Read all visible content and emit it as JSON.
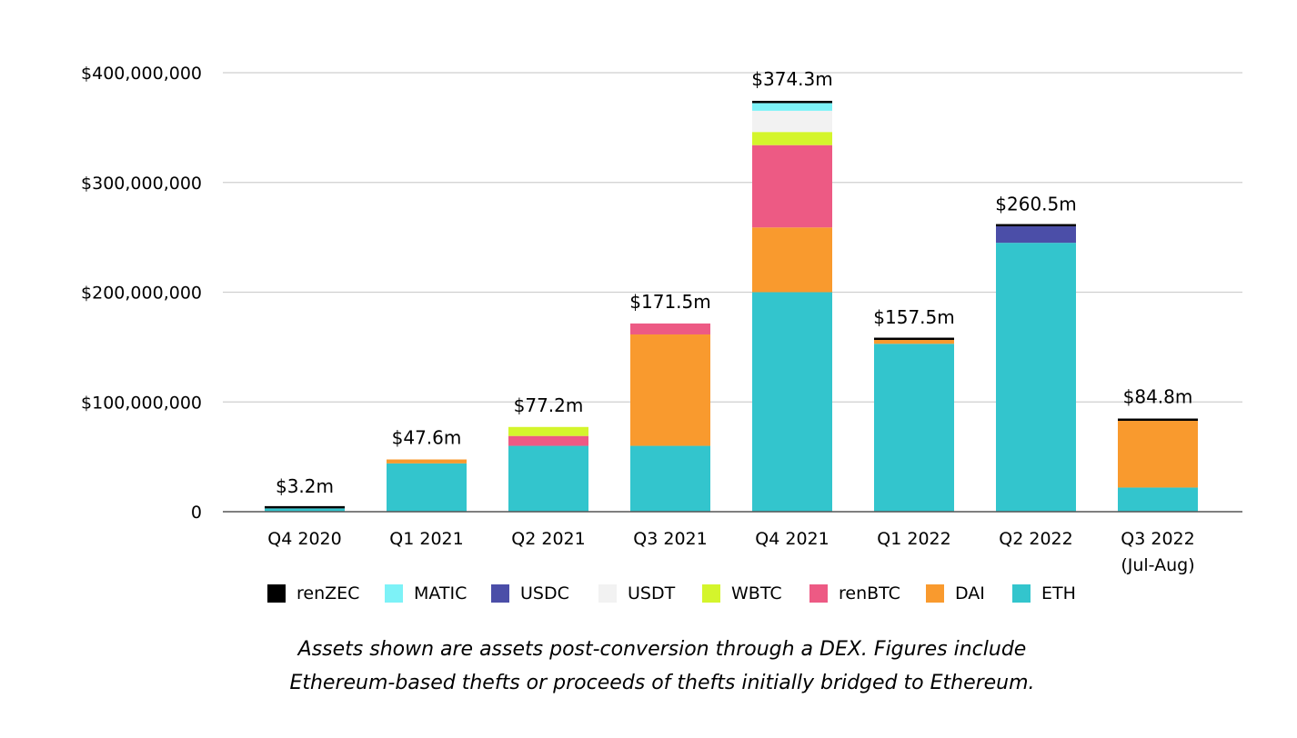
{
  "chart_data": {
    "type": "bar",
    "stacked": true,
    "categories": [
      "Q4 2020",
      "Q1 2021",
      "Q2 2021",
      "Q3 2021",
      "Q4 2021",
      "Q1 2022",
      "Q2 2022",
      "Q3 2022 (Jul-Aug)"
    ],
    "category_lines": [
      [
        "Q4 2020"
      ],
      [
        "Q1 2021"
      ],
      [
        "Q2 2021"
      ],
      [
        "Q3 2021"
      ],
      [
        "Q4 2021"
      ],
      [
        "Q1 2022"
      ],
      [
        "Q2 2022"
      ],
      [
        "Q3 2022",
        "(Jul-Aug)"
      ]
    ],
    "totals": [
      "$3.2m",
      "$47.6m",
      "$77.2m",
      "$171.5m",
      "$374.3m",
      "$157.5m",
      "$260.5m",
      "$84.8m"
    ],
    "yticks": [
      0,
      100000000,
      200000000,
      300000000,
      400000000
    ],
    "ytick_labels": [
      "0",
      "$100,000,000",
      "$200,000,000",
      "$300,000,000",
      "$400,000,000"
    ],
    "ylim": [
      0,
      400000000
    ],
    "grid": true,
    "legend_position": "bottom",
    "series": [
      {
        "name": "ETH",
        "color": "#33c5cd",
        "values": [
          3000000,
          44000000,
          60000000,
          60000000,
          200000000,
          153000000,
          245000000,
          22000000
        ]
      },
      {
        "name": "DAI",
        "color": "#f99a2e",
        "values": [
          0,
          3600000,
          0,
          101500000,
          59000000,
          3500000,
          0,
          60800000
        ]
      },
      {
        "name": "renBTC",
        "color": "#ed5a84",
        "values": [
          0,
          0,
          9000000,
          10000000,
          75000000,
          0,
          0,
          0
        ]
      },
      {
        "name": "WBTC",
        "color": "#d4f52c",
        "values": [
          0,
          0,
          8200000,
          0,
          12000000,
          0,
          0,
          0
        ]
      },
      {
        "name": "USDT",
        "color": "#f2f2f2",
        "values": [
          0,
          0,
          0,
          0,
          19300000,
          0,
          0,
          0
        ]
      },
      {
        "name": "USDC",
        "color": "#4b4ea8",
        "values": [
          0,
          0,
          0,
          0,
          0,
          0,
          15000000,
          0
        ]
      },
      {
        "name": "MATIC",
        "color": "#7df2f7",
        "values": [
          0,
          0,
          0,
          0,
          7000000,
          0,
          0,
          0
        ]
      },
      {
        "name": "renZEC",
        "color": "#000000",
        "values": [
          200000,
          0,
          0,
          0,
          2000000,
          1000000,
          500000,
          2000000
        ]
      }
    ],
    "legend_order": [
      "renZEC",
      "MATIC",
      "USDC",
      "USDT",
      "WBTC",
      "renBTC",
      "DAI",
      "ETH"
    ]
  },
  "caption": [
    "Assets shown are assets post-conversion through a DEX. Figures include",
    "Ethereum-based thefts or proceeds of thefts initially bridged to Ethereum."
  ]
}
